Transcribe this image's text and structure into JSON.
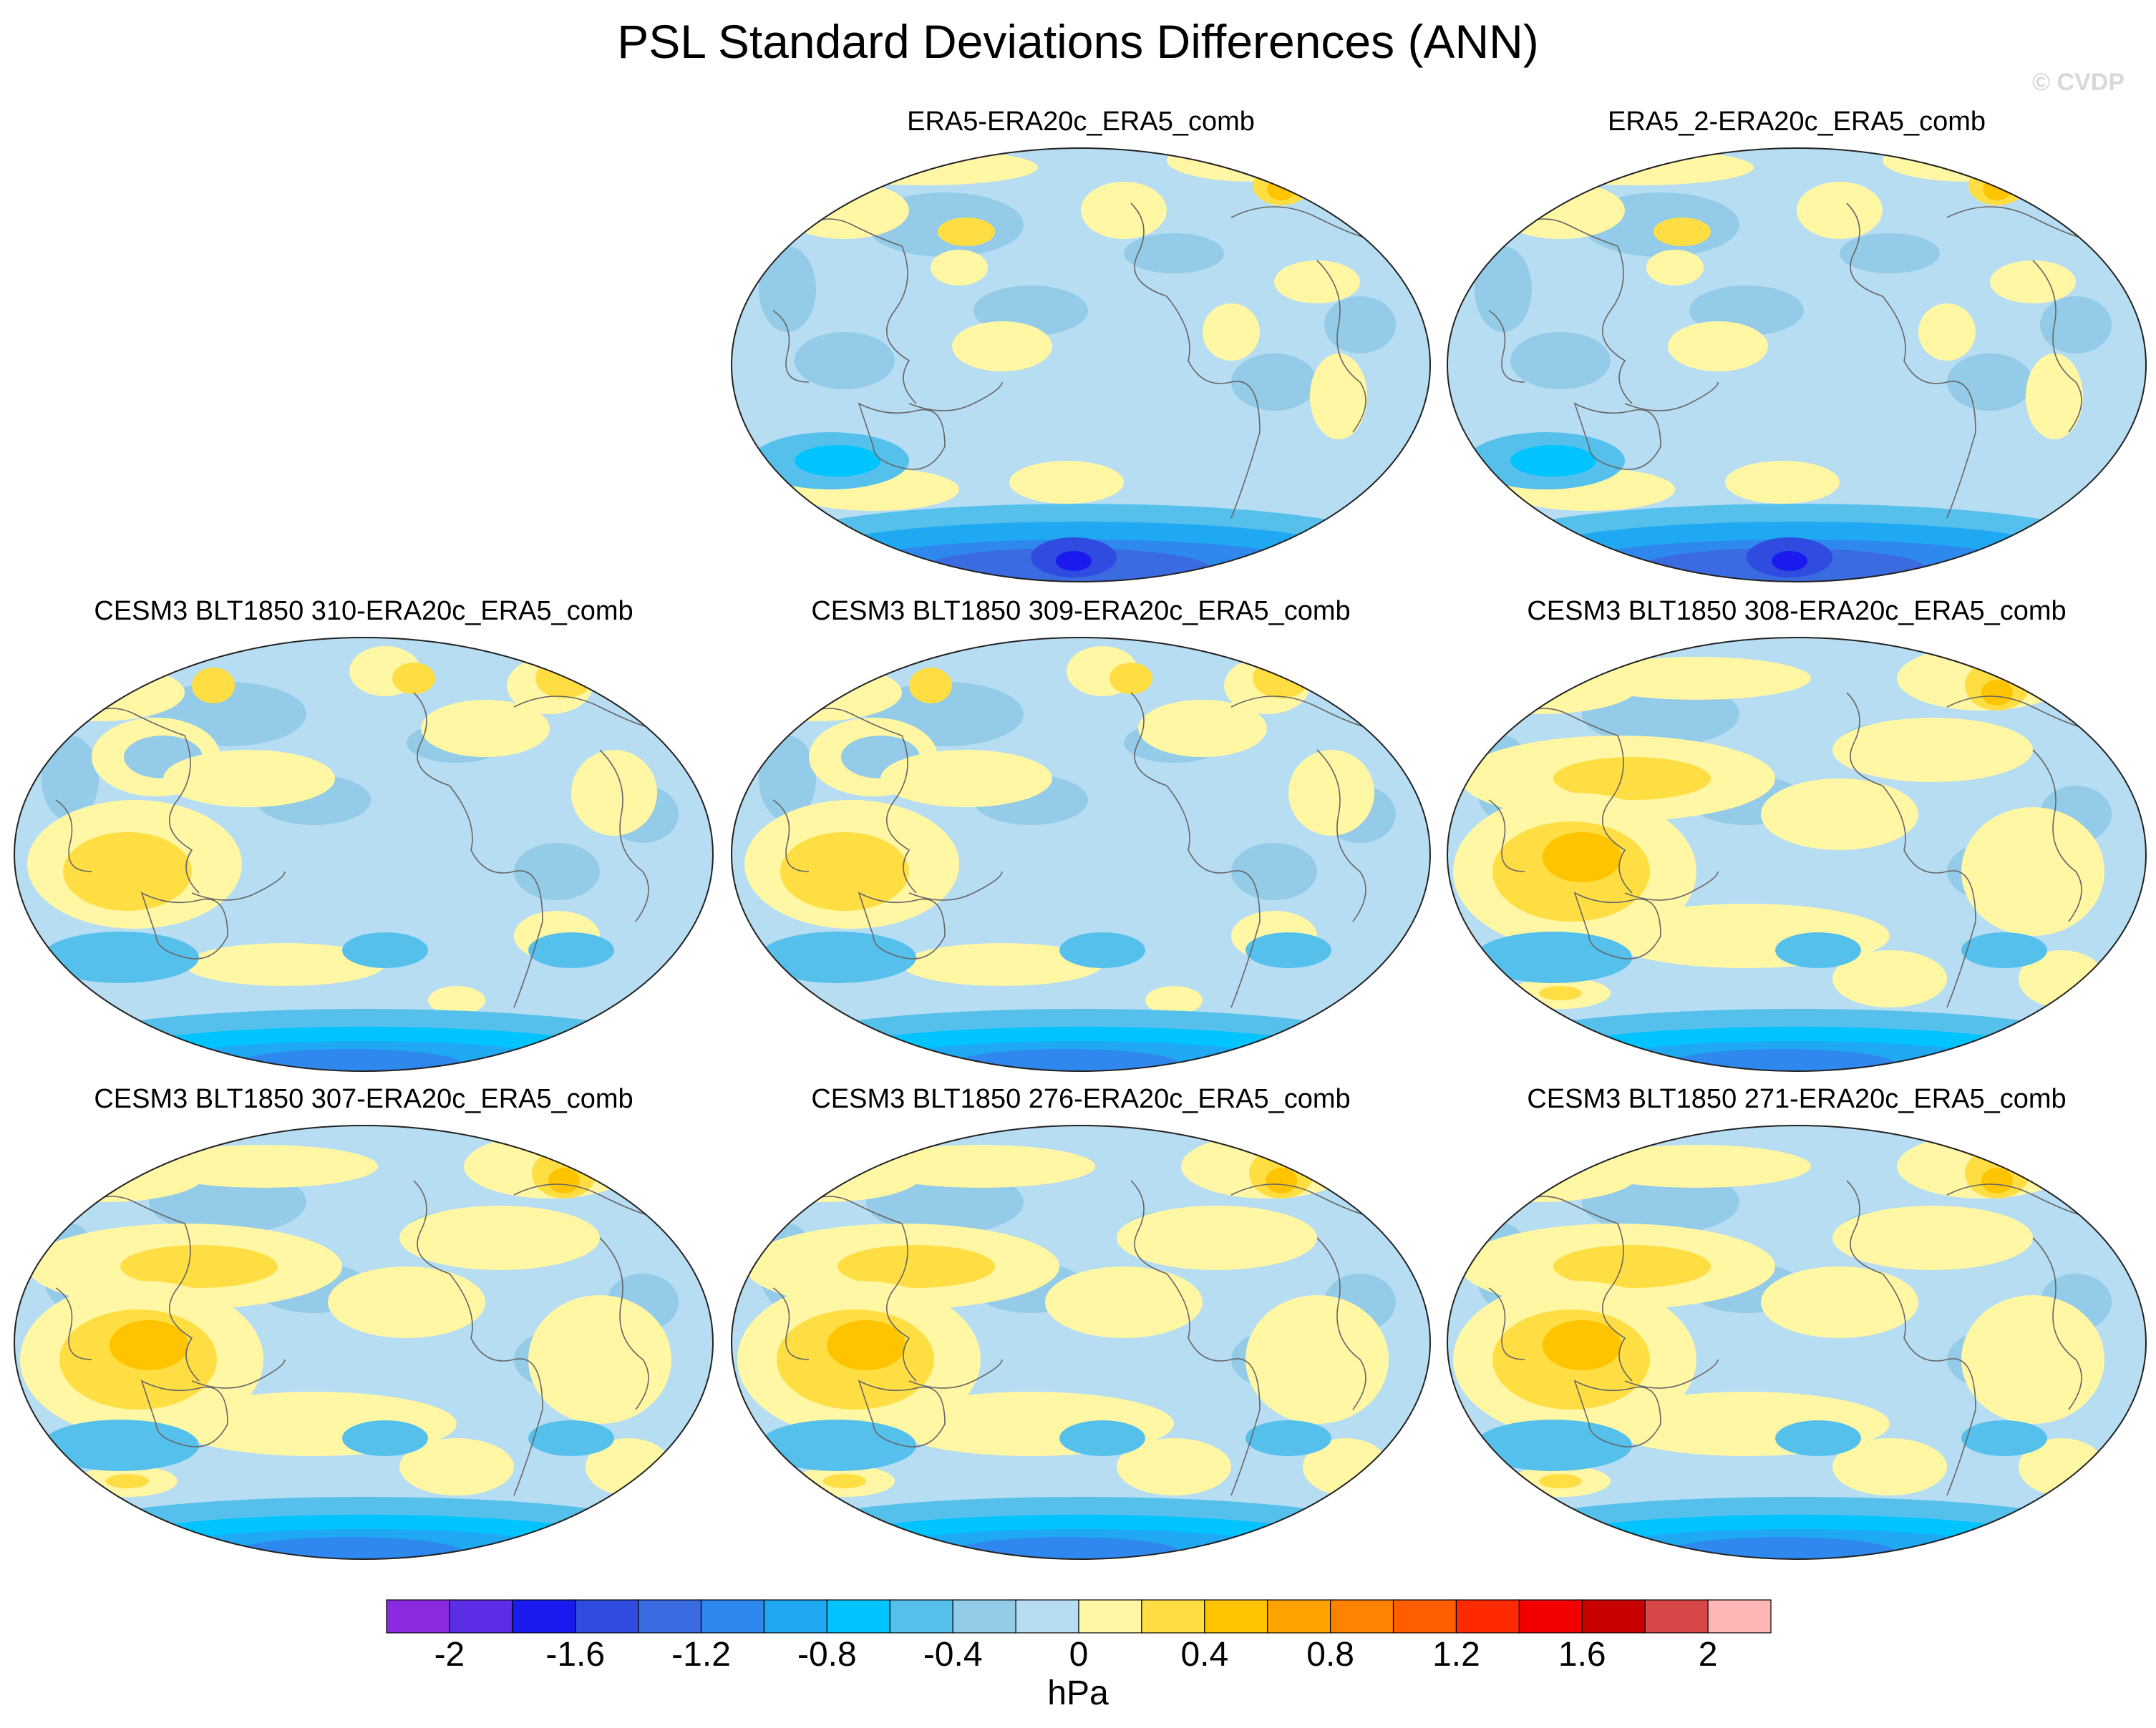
{
  "title": "PSL Standard Deviations Differences (ANN)",
  "watermark": "© CVDP",
  "panels": [
    {
      "label": "ERA5-ERA20c_ERA5_comb",
      "style": 0
    },
    {
      "label": "ERA5_2-ERA20c_ERA5_comb",
      "style": 0
    },
    {
      "label": "CESM3 BLT1850 310-ERA20c_ERA5_comb",
      "style": 1
    },
    {
      "label": "CESM3 BLT1850 309-ERA20c_ERA5_comb",
      "style": 1
    },
    {
      "label": "CESM3 BLT1850 308-ERA20c_ERA5_comb",
      "style": 2
    },
    {
      "label": "CESM3 BLT1850 307-ERA20c_ERA5_comb",
      "style": 2
    },
    {
      "label": "CESM3 BLT1850 276-ERA20c_ERA5_comb",
      "style": 2
    },
    {
      "label": "CESM3 BLT1850 271-ERA20c_ERA5_comb",
      "style": 2
    }
  ],
  "colors": {
    "ocean_base": "#b7ddf2",
    "coast": "#666666",
    "levels": [
      "#8a2be2",
      "#5b2ee6",
      "#1a1aef",
      "#2f4be0",
      "#3a6be0",
      "#2f88ee",
      "#1fa9f2",
      "#00c4ff",
      "#56c0ec",
      "#93cbe8",
      "#b7ddf2",
      "#fff7a4",
      "#ffde44",
      "#ffc400",
      "#ffa300",
      "#ff8200",
      "#ff5e00",
      "#ff2a00",
      "#f20000",
      "#c80000",
      "#d84848",
      "#ffb6b6"
    ]
  },
  "chart_data": {
    "type": "heatmap",
    "title": "PSL Standard Deviations Differences (ANN)",
    "projection": "Robinson, Pacific-centered",
    "colorbar": {
      "label": "hPa",
      "levels": [
        -2.0,
        -1.8,
        -1.6,
        -1.4,
        -1.2,
        -1.0,
        -0.8,
        -0.6,
        -0.4,
        -0.2,
        0,
        0.2,
        0.4,
        0.6,
        0.8,
        1.0,
        1.2,
        1.4,
        1.6,
        1.8,
        2.0
      ],
      "tick_labels": [
        "-2",
        "-1.6",
        "-1.2",
        "-0.8",
        "-0.4",
        "0",
        "0.4",
        "0.8",
        "1.2",
        "1.6",
        "2"
      ],
      "tick_values": [
        -2,
        -1.6,
        -1.2,
        -0.8,
        -0.4,
        0,
        0.4,
        0.8,
        1.2,
        1.6,
        2
      ]
    },
    "unit": "hPa"
  }
}
